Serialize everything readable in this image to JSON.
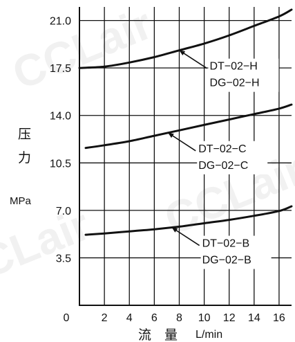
{
  "chart_data": {
    "type": "line",
    "ylabel_cn": [
      "压",
      "力"
    ],
    "yunit": "MPa",
    "xlabel_cn": "流　量",
    "xunit": "L/min",
    "origin_label": "0",
    "xlim": [
      0,
      17
    ],
    "ylim": [
      0,
      22
    ],
    "x_ticks": [
      2,
      4,
      6,
      8,
      10,
      12,
      14,
      16
    ],
    "y_ticks": [
      3.5,
      7.0,
      10.5,
      14.0,
      17.5,
      21.0
    ],
    "x_tick_labels": [
      "2",
      "4",
      "6",
      "8",
      "10",
      "12",
      "14",
      "16"
    ],
    "y_tick_labels": [
      "3.5",
      "7.0",
      "10.5",
      "14.0",
      "17.5",
      "21.0"
    ],
    "grid": true,
    "series": [
      {
        "name": "DT-02-H / DG-02-H",
        "labels": [
          "DT−02−H",
          "DG−02−H"
        ],
        "x": [
          0,
          2,
          4,
          6,
          8,
          10,
          12,
          14,
          16,
          17
        ],
        "y": [
          17.5,
          17.6,
          17.9,
          18.3,
          18.8,
          19.3,
          19.9,
          20.6,
          21.3,
          21.8
        ]
      },
      {
        "name": "DT-02-C / DG-02-C",
        "labels": [
          "DT−02−C",
          "DG−02−C"
        ],
        "x": [
          0.5,
          2,
          4,
          6,
          8,
          10,
          12,
          14,
          16,
          17
        ],
        "y": [
          11.6,
          11.8,
          12.1,
          12.5,
          12.9,
          13.3,
          13.7,
          14.1,
          14.5,
          14.8
        ]
      },
      {
        "name": "DT-02-B / DG-02-B",
        "labels": [
          "DT−02−B",
          "DG−02−B"
        ],
        "x": [
          0.5,
          2,
          4,
          6,
          8,
          10,
          12,
          14,
          16,
          17
        ],
        "y": [
          5.2,
          5.3,
          5.45,
          5.6,
          5.8,
          6.05,
          6.3,
          6.6,
          6.95,
          7.3
        ]
      }
    ],
    "watermark": "CCLair",
    "colors": {
      "line": "#111111",
      "grid": "#111111",
      "watermark": "#eeeeee"
    }
  }
}
